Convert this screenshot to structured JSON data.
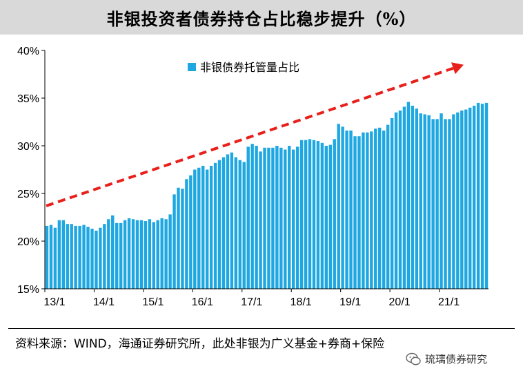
{
  "title": "非银投资者债券持仓占比稳步提升（%）",
  "source_note": "资料来源：WIND，海通证券研究所，此处非银为广义基金+券商+保险",
  "watermark": "琉璃债券研究",
  "colors": {
    "bar": "#1ea7e1",
    "arrow": "#e8201c",
    "title_bg": "#d9d9d9"
  },
  "chart_data": {
    "type": "bar",
    "title": "非银投资者债券持仓占比稳步提升（%）",
    "xlabel": "",
    "ylabel": "",
    "ylim": [
      15,
      40
    ],
    "yticks": [
      15,
      20,
      25,
      30,
      35,
      40
    ],
    "ytick_labels": [
      "15%",
      "20%",
      "25%",
      "30%",
      "35%",
      "40%"
    ],
    "x_tick_labels": [
      "13/1",
      "14/1",
      "15/1",
      "16/1",
      "17/1",
      "18/1",
      "19/1",
      "20/1",
      "21/1"
    ],
    "x_tick_start_index": [
      0,
      12,
      24,
      36,
      48,
      60,
      72,
      84,
      96
    ],
    "legend": {
      "label": "非银债券托管量占比",
      "position": "top-center"
    },
    "annotation": {
      "type": "arrow",
      "description": "trend",
      "from_value": 23.7,
      "to_value": 38.5
    },
    "series": [
      {
        "name": "非银债券托管量占比",
        "values": [
          21.6,
          21.7,
          21.4,
          22.2,
          22.2,
          21.8,
          21.8,
          21.6,
          21.6,
          21.7,
          21.5,
          21.3,
          21.1,
          21.4,
          21.8,
          22.3,
          22.7,
          21.9,
          21.9,
          22.2,
          22.4,
          22.3,
          22.2,
          22.2,
          22.1,
          22.3,
          22.0,
          22.2,
          22.4,
          22.3,
          22.8,
          24.9,
          25.6,
          25.5,
          26.5,
          26.9,
          27.5,
          27.7,
          27.9,
          27.5,
          27.9,
          28.2,
          28.5,
          28.8,
          29.1,
          29.3,
          28.8,
          28.5,
          28.3,
          29.9,
          30.2,
          30.0,
          29.4,
          29.8,
          29.8,
          29.8,
          30.0,
          29.8,
          29.6,
          30.0,
          29.6,
          29.9,
          30.6,
          30.6,
          30.7,
          30.6,
          30.5,
          30.3,
          30.0,
          30.1,
          30.7,
          32.3,
          32.0,
          31.6,
          31.6,
          31.0,
          31.0,
          31.4,
          31.4,
          31.5,
          31.8,
          31.9,
          31.6,
          32.2,
          32.9,
          33.5,
          33.7,
          34.1,
          34.6,
          34.2,
          33.9,
          33.4,
          33.3,
          33.2,
          32.8,
          32.8,
          33.4,
          32.8,
          32.8,
          33.3,
          33.5,
          33.7,
          33.8,
          34.0,
          34.2,
          34.5,
          34.4,
          34.5
        ]
      }
    ]
  }
}
